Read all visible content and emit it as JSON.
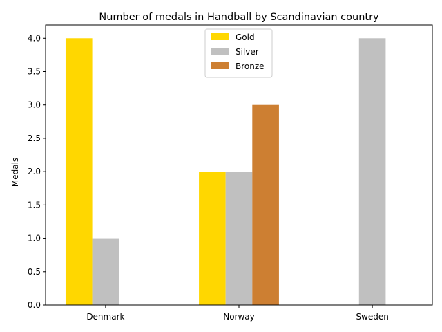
{
  "chart_data": {
    "type": "bar",
    "title": "Number of medals in Handball by Scandinavian country",
    "xlabel": "",
    "ylabel": "Medals",
    "categories": [
      "Denmark",
      "Norway",
      "Sweden"
    ],
    "series": [
      {
        "name": "Gold",
        "color": "#FFD700",
        "values": [
          4,
          2,
          0
        ]
      },
      {
        "name": "Silver",
        "color": "#C0C0C0",
        "values": [
          1,
          2,
          4
        ]
      },
      {
        "name": "Bronze",
        "color": "#CD7F32",
        "values": [
          0,
          3,
          0
        ]
      }
    ],
    "ylim": [
      0,
      4.2
    ],
    "yticks": [
      "0.0",
      "0.5",
      "1.0",
      "1.5",
      "2.0",
      "2.5",
      "3.0",
      "3.5",
      "4.0"
    ],
    "legend": "upper-center",
    "grid": false
  }
}
